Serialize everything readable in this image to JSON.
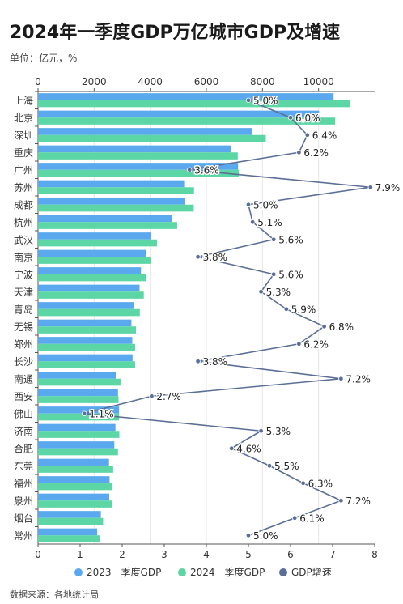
{
  "title": "2024年一季度GDP万亿城市GDP及增速",
  "unit": "单位：亿元，%",
  "source": "数据来源：各地统计局",
  "colors": {
    "gdp2023": "#5aa9ee",
    "gdp2024": "#5cd6a4",
    "growth": "#5b6e96"
  },
  "chart_data": {
    "type": "bar",
    "orientation": "horizontal",
    "categories": [
      "上海",
      "北京",
      "深圳",
      "重庆",
      "广州",
      "苏州",
      "成都",
      "杭州",
      "武汉",
      "南京",
      "宁波",
      "天津",
      "青岛",
      "无锡",
      "郑州",
      "长沙",
      "南通",
      "西安",
      "佛山",
      "济南",
      "合肥",
      "东莞",
      "福州",
      "泉州",
      "烟台",
      "常州"
    ],
    "series": [
      {
        "name": "2023一季度GDP",
        "type": "bar",
        "axis": "top",
        "values": [
          10536,
          10020,
          7630,
          6880,
          7130,
          5210,
          5240,
          4780,
          4040,
          3840,
          3670,
          3620,
          3430,
          3330,
          3360,
          3370,
          2770,
          2850,
          2890,
          2760,
          2720,
          2530,
          2550,
          2540,
          2240,
          2110
        ]
      },
      {
        "name": "2024一季度GDP",
        "type": "bar",
        "axis": "top",
        "values": [
          11133,
          10590,
          8120,
          7120,
          7160,
          5560,
          5550,
          4960,
          4240,
          4020,
          3860,
          3770,
          3630,
          3490,
          3460,
          3460,
          2940,
          2870,
          2890,
          2900,
          2850,
          2680,
          2650,
          2640,
          2320,
          2200
        ]
      },
      {
        "name": "GDP增速",
        "type": "line",
        "axis": "bottom",
        "values": [
          5.0,
          6.0,
          6.4,
          6.2,
          3.6,
          7.9,
          5.0,
          5.1,
          5.6,
          3.8,
          5.6,
          5.3,
          5.9,
          6.8,
          6.2,
          3.8,
          7.2,
          2.7,
          1.1,
          5.3,
          4.6,
          5.5,
          6.3,
          7.2,
          6.1,
          5.0
        ],
        "labels": [
          "5.0%",
          "6.0%",
          "6.4%",
          "6.2%",
          "3.6%",
          "7.9%",
          "5.0%",
          "5.1%",
          "5.6%",
          "3.8%",
          "5.6%",
          "5.3%",
          "5.9%",
          "6.8%",
          "6.2%",
          "3.8%",
          "7.2%",
          "2.7%",
          "1.1%",
          "5.3%",
          "4.6%",
          "5.5%",
          "6.3%",
          "7.2%",
          "6.1%",
          "5.0%"
        ]
      }
    ],
    "x_top": {
      "min": 0,
      "max": 12000,
      "ticks": [
        "0",
        "2000",
        "4000",
        "6000",
        "8000",
        "10000"
      ]
    },
    "x_bottom": {
      "min": 0,
      "max": 8,
      "ticks": [
        "0",
        "1",
        "2",
        "3",
        "4",
        "5",
        "6",
        "7",
        "8"
      ]
    },
    "grid": true,
    "legend_position": "bottom"
  }
}
